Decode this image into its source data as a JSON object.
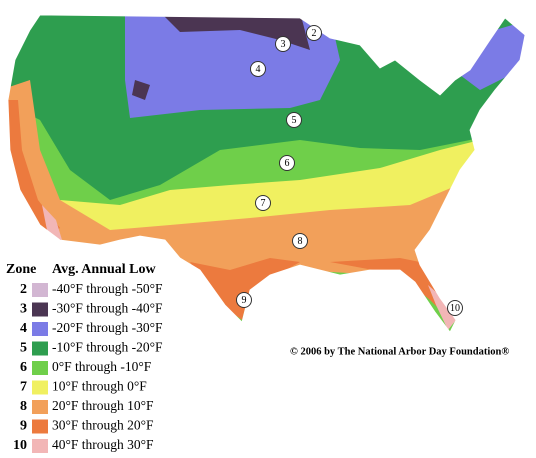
{
  "legend": {
    "title": "Zone",
    "header": "Avg. Annual Low",
    "items": [
      {
        "zone": "2",
        "color": "#d2b6d2",
        "label": "-40°F through -50°F"
      },
      {
        "zone": "3",
        "color": "#4b3552",
        "label": "-30°F through -40°F"
      },
      {
        "zone": "4",
        "color": "#7b7be6",
        "label": "-20°F through -30°F"
      },
      {
        "zone": "5",
        "color": "#2e9e4f",
        "label": "-10°F through -20°F"
      },
      {
        "zone": "6",
        "color": "#6fcf4a",
        "label": "0°F through -10°F"
      },
      {
        "zone": "7",
        "color": "#f0f060",
        "label": "10°F through 0°F"
      },
      {
        "zone": "8",
        "color": "#f2a05a",
        "label": "20°F through 10°F"
      },
      {
        "zone": "9",
        "color": "#ec7a3e",
        "label": "30°F through 20°F"
      },
      {
        "zone": "10",
        "color": "#f2b6b6",
        "label": "40°F through 30°F"
      }
    ]
  },
  "map_labels": [
    "2",
    "3",
    "4",
    "5",
    "6",
    "7",
    "8",
    "9",
    "10"
  ],
  "copyright": "© 2006 by The National Arbor Day Foundation®"
}
